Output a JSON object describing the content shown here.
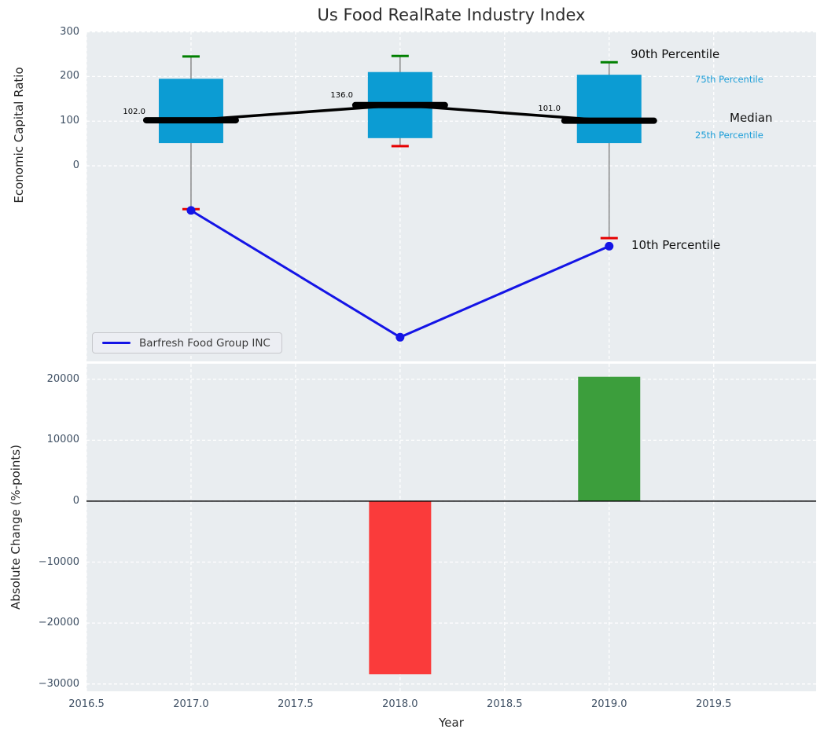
{
  "title": "Us Food RealRate Industry Index",
  "legend": {
    "label": "Barfresh Food Group INC"
  },
  "colors": {
    "axes_background": "#e9edf0",
    "gridline": "#ffffff",
    "box_fill": "#0c9cd3",
    "median_line": "#000000",
    "whisker": "#7a7a7a",
    "cap_90th": "#008000",
    "cap_10th": "#e60000",
    "company_line": "#1414e6",
    "bar_negative": "#fa3b3b",
    "bar_positive": "#3c9e3c",
    "zero_line": "#000000",
    "tick_label": "#3e4f63",
    "percentile_label_blue": "#1c9ed8"
  },
  "chart_data": [
    {
      "type": "line",
      "subtype": "percentile-band-boxes",
      "title": "Us Food RealRate Industry Index",
      "xlabel": "",
      "ylabel": "Economic Capital Ratio",
      "x": [
        2017,
        2018,
        2019
      ],
      "box_series": {
        "p90": [
          245,
          246,
          232
        ],
        "p75": [
          195,
          210,
          204
        ],
        "median": [
          102,
          136,
          101
        ],
        "p25": [
          51,
          62,
          51
        ],
        "p10": [
          -97,
          44,
          -162
        ]
      },
      "line_series": {
        "name": "Barfresh Food Group INC",
        "values": [
          -100,
          -384,
          -180
        ]
      },
      "median_value_labels": [
        "102.0",
        "136.0",
        "101.0"
      ],
      "yticks": [
        {
          "v": 300,
          "label": "300"
        },
        {
          "v": 200,
          "label": "200"
        },
        {
          "v": 100,
          "label": "100"
        },
        {
          "v": 0,
          "label": "0"
        }
      ],
      "xticks": [
        2016.5,
        2017,
        2017.5,
        2018,
        2018.5,
        2019,
        2019.5
      ],
      "ylim": [
        -438,
        301
      ],
      "xlim": [
        2016.5,
        2019.99
      ],
      "grid": true,
      "legend_position": "lower left",
      "annotations": [
        {
          "text": "102.0"
        },
        {
          "text": "136.0"
        },
        {
          "text": "101.0"
        },
        {
          "text": "90th Percentile"
        },
        {
          "text": "75th Percentile"
        },
        {
          "text": "Median"
        },
        {
          "text": "25th Percentile"
        },
        {
          "text": "10th Percentile"
        }
      ]
    },
    {
      "type": "bar",
      "xlabel": "Year",
      "ylabel": "Absolute Change (%-points)",
      "categories": [
        2018,
        2019
      ],
      "values": [
        -28400,
        20400
      ],
      "bar_color_keys": [
        "bar_negative",
        "bar_positive"
      ],
      "yticks": [
        {
          "v": 20000,
          "label": "20000"
        },
        {
          "v": 10000,
          "label": "10000"
        },
        {
          "v": 0,
          "label": "0"
        },
        {
          "v": -10000,
          "label": "−10000"
        },
        {
          "v": -20000,
          "label": "−20000"
        },
        {
          "v": -30000,
          "label": "−30000"
        }
      ],
      "xticks": [
        {
          "v": 2016.5,
          "label": "2016.5"
        },
        {
          "v": 2017,
          "label": "2017.0"
        },
        {
          "v": 2017.5,
          "label": "2017.5"
        },
        {
          "v": 2018,
          "label": "2018.0"
        },
        {
          "v": 2018.5,
          "label": "2018.5"
        },
        {
          "v": 2019,
          "label": "2019.0"
        },
        {
          "v": 2019.5,
          "label": "2019.5"
        }
      ],
      "ylim": [
        -31200,
        22550
      ],
      "xlim": [
        2016.5,
        2019.99
      ],
      "grid": true,
      "zero_line": true
    }
  ]
}
